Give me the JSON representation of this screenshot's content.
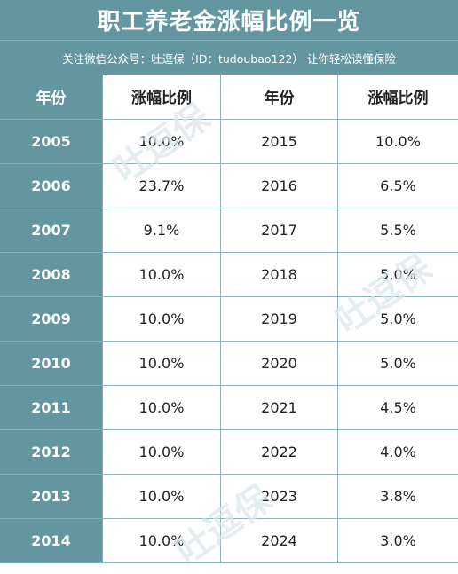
{
  "title": "职工养老金涨幅比例一览",
  "subtitle": "关注微信公众号：吐逗保（ID：tudoubao122）   让你轻松读懂保险",
  "headers": [
    "年份",
    "涨幅比例",
    "年份",
    "涨幅比例"
  ],
  "rows": [
    {
      "year_a": "2005",
      "rate_a": "10.0%",
      "year_b": "2015",
      "rate_b": "10.0%"
    },
    {
      "year_a": "2006",
      "rate_a": "23.7%",
      "year_b": "2016",
      "rate_b": "6.5%"
    },
    {
      "year_a": "2007",
      "rate_a": "9.1%",
      "year_b": "2017",
      "rate_b": "5.5%"
    },
    {
      "year_a": "2008",
      "rate_a": "10.0%",
      "year_b": "2018",
      "rate_b": "5.0%"
    },
    {
      "year_a": "2009",
      "rate_a": "10.0%",
      "year_b": "2019",
      "rate_b": "5.0%"
    },
    {
      "year_a": "2010",
      "rate_a": "10.0%",
      "year_b": "2020",
      "rate_b": "5.0%"
    },
    {
      "year_a": "2011",
      "rate_a": "10.0%",
      "year_b": "2021",
      "rate_b": "4.5%"
    },
    {
      "year_a": "2012",
      "rate_a": "10.0%",
      "year_b": "2022",
      "rate_b": "4.0%"
    },
    {
      "year_a": "2013",
      "rate_a": "10.0%",
      "year_b": "2023",
      "rate_b": "3.8%"
    },
    {
      "year_a": "2014",
      "rate_a": "10.0%",
      "year_b": "2024",
      "rate_b": "3.0%"
    }
  ],
  "watermark": "吐逗保"
}
